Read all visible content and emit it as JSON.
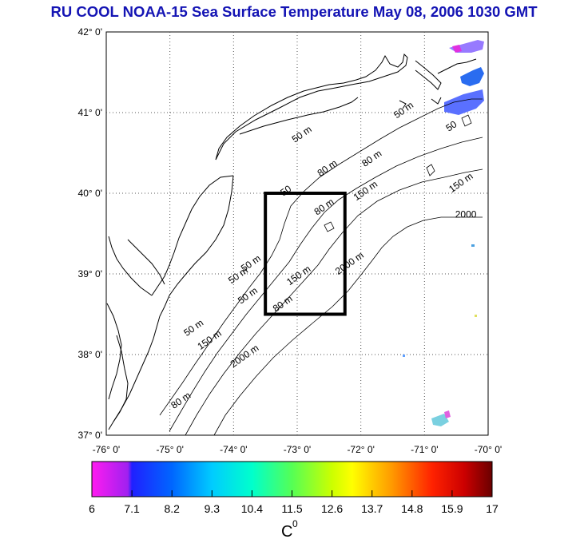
{
  "title": "RU COOL  NOAA-15 Sea Surface Temperature May 08, 2006 1030 GMT",
  "map": {
    "lon_range": [
      -76,
      -70
    ],
    "lat_range": [
      37,
      42
    ],
    "lon_labels": [
      "-76° 0'",
      "-75° 0'",
      "-74° 0'",
      "-73° 0'",
      "-72° 0'",
      "-71° 0'",
      "-70° 0'"
    ],
    "lat_labels": [
      "37° 0'",
      "38° 0'",
      "39° 0'",
      "40° 0'",
      "41° 0'",
      "42° 0'"
    ],
    "study_box": {
      "lon": [
        -73.5,
        -72.25
      ],
      "lat": [
        38.5,
        40.0
      ]
    },
    "contour_labels": [
      {
        "text": "50 m",
        "lon": -72.9,
        "lat": 40.7
      },
      {
        "text": "50 m",
        "lon": -71.3,
        "lat": 41.0
      },
      {
        "text": "50",
        "lon": -70.55,
        "lat": 40.8
      },
      {
        "text": "80 m",
        "lon": -72.5,
        "lat": 40.28
      },
      {
        "text": "80 m",
        "lon": -71.8,
        "lat": 40.4
      },
      {
        "text": "150 m",
        "lon": -71.9,
        "lat": 40.0
      },
      {
        "text": "150 m",
        "lon": -70.4,
        "lat": 40.1
      },
      {
        "text": "2000",
        "lon": -70.35,
        "lat": 39.7
      },
      {
        "text": "50",
        "lon": -73.15,
        "lat": 40.0
      },
      {
        "text": "80 m",
        "lon": -72.55,
        "lat": 39.8
      },
      {
        "text": "2000 m",
        "lon": -72.15,
        "lat": 39.1
      },
      {
        "text": "50 m",
        "lon": -73.9,
        "lat": 38.95
      },
      {
        "text": "50 m",
        "lon": -73.7,
        "lat": 39.1
      },
      {
        "text": "150 m",
        "lon": -72.95,
        "lat": 38.95
      },
      {
        "text": "50 m",
        "lon": -73.75,
        "lat": 38.7
      },
      {
        "text": "80 m",
        "lon": -73.2,
        "lat": 38.6
      },
      {
        "text": "50 m",
        "lon": -74.6,
        "lat": 38.3
      },
      {
        "text": "150 m",
        "lon": -74.35,
        "lat": 38.15
      },
      {
        "text": "2000 m",
        "lon": -73.8,
        "lat": 37.95
      },
      {
        "text": "80 m",
        "lon": -74.8,
        "lat": 37.4
      }
    ],
    "sst_patches": [
      {
        "lon": -70.35,
        "lat": 41.8,
        "color": "#8c6cff"
      },
      {
        "lon": -70.2,
        "lat": 41.5,
        "color": "#2a6cf0"
      },
      {
        "lon": -70.3,
        "lat": 41.15,
        "color": "#5a70ff"
      },
      {
        "lon": -70.6,
        "lat": 37.2,
        "color": "#7ad0e0"
      }
    ]
  },
  "colorbar": {
    "min": 6,
    "max": 17,
    "tick_labels": [
      "6",
      "7.1",
      "8.2",
      "9.3",
      "10.4",
      "11.5",
      "12.6",
      "13.7",
      "14.8",
      "15.9",
      "17"
    ],
    "unit_label": "C",
    "unit_superscript": "0"
  }
}
